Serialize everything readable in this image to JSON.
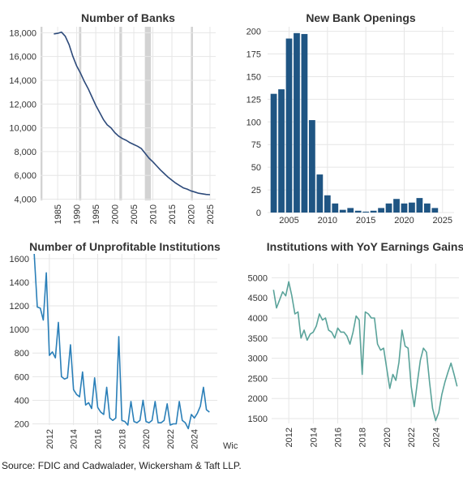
{
  "source": "Source: FDIC and Cadwalader, Wickersham & Taft LLP.",
  "watermark_fragment": "Wic",
  "chart_data": [
    {
      "type": "line",
      "title": "Number of Banks",
      "color": "#2d4a7a",
      "xlim": [
        1980.5,
        2026.5
      ],
      "ylim": [
        3900,
        18500
      ],
      "xticks": [
        1985,
        1990,
        1995,
        2000,
        2005,
        2010,
        2015,
        2020,
        2025
      ],
      "yticks": [
        4000,
        6000,
        8000,
        10000,
        12000,
        14000,
        16000,
        18000
      ],
      "ytick_labels": [
        "4,000",
        "6,000",
        "8,000",
        "10,000",
        "12,000",
        "14,000",
        "16,000",
        "18,000"
      ],
      "shaded_periods": [
        [
          1980.5,
          1981
        ],
        [
          1990.6,
          1991.2
        ],
        [
          2001.2,
          2001.9
        ],
        [
          2007.9,
          2009.5
        ],
        [
          2020.1,
          2020.4
        ]
      ],
      "x": [
        1984,
        1985,
        1986,
        1987,
        1988,
        1989,
        1990,
        1991,
        1992,
        1993,
        1994,
        1995,
        1996,
        1997,
        1998,
        1999,
        2000,
        2001,
        2002,
        2003,
        2004,
        2005,
        2006,
        2007,
        2008,
        2009,
        2010,
        2011,
        2012,
        2013,
        2014,
        2015,
        2016,
        2017,
        2018,
        2019,
        2020,
        2021,
        2022,
        2023,
        2024,
        2025
      ],
      "y": [
        17900,
        17950,
        18050,
        17700,
        17000,
        16000,
        15200,
        14600,
        13900,
        13300,
        12600,
        11900,
        11300,
        10700,
        10250,
        10000,
        9600,
        9300,
        9100,
        8950,
        8750,
        8600,
        8450,
        8250,
        7850,
        7450,
        7150,
        6800,
        6450,
        6150,
        5850,
        5600,
        5350,
        5150,
        4950,
        4850,
        4700,
        4600,
        4500,
        4450,
        4400,
        4380
      ]
    },
    {
      "type": "bar",
      "title": "New Bank Openings",
      "color": "#1f5583",
      "xlim": [
        2002.2,
        2026.5
      ],
      "ylim": [
        0,
        205
      ],
      "xticks": [
        2005,
        2010,
        2015,
        2020,
        2025
      ],
      "yticks": [
        0,
        25,
        50,
        75,
        100,
        125,
        150,
        175,
        200
      ],
      "categories": [
        2003,
        2004,
        2005,
        2006,
        2007,
        2008,
        2009,
        2010,
        2011,
        2012,
        2013,
        2014,
        2015,
        2016,
        2017,
        2018,
        2019,
        2020,
        2021,
        2022,
        2023,
        2024
      ],
      "values": [
        131,
        136,
        192,
        198,
        197,
        102,
        42,
        19,
        10,
        3,
        5,
        2,
        1,
        2,
        5,
        10,
        15,
        10,
        11,
        16,
        10,
        5
      ]
    },
    {
      "type": "line",
      "title": "Number of Unprofitable Institutions",
      "color": "#2a7fb8",
      "xlim": [
        2010.6,
        2025.9
      ],
      "ylim": [
        190,
        1640
      ],
      "xticks": [
        2012,
        2014,
        2016,
        2018,
        2020,
        2022,
        2024
      ],
      "yticks": [
        200,
        400,
        600,
        800,
        1000,
        1200,
        1400,
        1600
      ],
      "x": [
        2010.75,
        2011.0,
        2011.25,
        2011.5,
        2011.75,
        2012.0,
        2012.25,
        2012.5,
        2012.75,
        2013.0,
        2013.25,
        2013.5,
        2013.75,
        2014.0,
        2014.25,
        2014.5,
        2014.75,
        2015.0,
        2015.25,
        2015.5,
        2015.75,
        2016.0,
        2016.25,
        2016.5,
        2016.75,
        2017.0,
        2017.25,
        2017.5,
        2017.75,
        2018.0,
        2018.25,
        2018.5,
        2018.75,
        2019.0,
        2019.25,
        2019.5,
        2019.75,
        2020.0,
        2020.25,
        2020.5,
        2020.75,
        2021.0,
        2021.25,
        2021.5,
        2021.75,
        2022.0,
        2022.25,
        2022.5,
        2022.75,
        2023.0,
        2023.25,
        2023.5,
        2023.75,
        2024.0,
        2024.25,
        2024.5,
        2024.75,
        2025.0,
        2025.25
      ],
      "y": [
        1640,
        1190,
        1180,
        1080,
        1480,
        780,
        810,
        760,
        1060,
        600,
        580,
        590,
        870,
        490,
        450,
        430,
        640,
        360,
        380,
        330,
        590,
        340,
        300,
        280,
        510,
        250,
        230,
        250,
        940,
        230,
        220,
        190,
        390,
        220,
        210,
        230,
        400,
        220,
        210,
        230,
        390,
        210,
        210,
        230,
        370,
        190,
        200,
        200,
        390,
        230,
        210,
        160,
        280,
        250,
        290,
        350,
        510,
        320,
        300
      ]
    },
    {
      "type": "line",
      "title": "Institutions with YoY Earnings Gains",
      "color": "#5aa39a",
      "xlim": [
        2010.6,
        2025.9
      ],
      "ylim": [
        1380,
        5350
      ],
      "xticks": [
        2012,
        2014,
        2016,
        2018,
        2020,
        2022,
        2024
      ],
      "yticks": [
        1500,
        2000,
        2500,
        3000,
        3500,
        4000,
        4500,
        5000
      ],
      "x": [
        2010.75,
        2011.0,
        2011.25,
        2011.5,
        2011.75,
        2012.0,
        2012.25,
        2012.5,
        2012.75,
        2013.0,
        2013.25,
        2013.5,
        2013.75,
        2014.0,
        2014.25,
        2014.5,
        2014.75,
        2015.0,
        2015.25,
        2015.5,
        2015.75,
        2016.0,
        2016.25,
        2016.5,
        2016.75,
        2017.0,
        2017.25,
        2017.5,
        2017.75,
        2018.0,
        2018.25,
        2018.5,
        2018.75,
        2019.0,
        2019.25,
        2019.5,
        2019.75,
        2020.0,
        2020.25,
        2020.5,
        2020.75,
        2021.0,
        2021.25,
        2021.5,
        2021.75,
        2022.0,
        2022.25,
        2022.5,
        2022.75,
        2023.0,
        2023.25,
        2023.5,
        2023.75,
        2024.0,
        2024.25,
        2024.5,
        2024.75,
        2025.0,
        2025.25,
        2025.5,
        2025.75
      ],
      "y": [
        4700,
        4250,
        4450,
        4650,
        4550,
        4900,
        4550,
        4100,
        4150,
        3500,
        3700,
        3450,
        3600,
        3650,
        3800,
        4100,
        3950,
        4000,
        3700,
        3650,
        3500,
        3750,
        3650,
        3650,
        3550,
        3350,
        3650,
        4050,
        3950,
        2600,
        4150,
        4100,
        4000,
        4000,
        3350,
        3200,
        3250,
        2750,
        2250,
        2600,
        2450,
        2900,
        3700,
        3300,
        3250,
        2300,
        1800,
        2400,
        2950,
        3250,
        3150,
        2400,
        1750,
        1450,
        1650,
        2100,
        2400,
        2650,
        2880,
        2600,
        2300
      ]
    }
  ]
}
